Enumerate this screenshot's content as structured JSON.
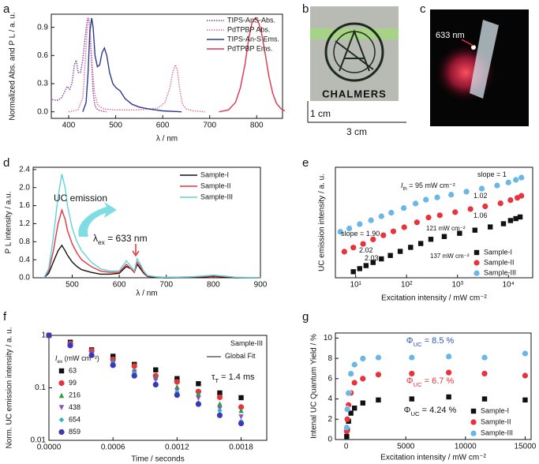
{
  "chart_data": [
    {
      "panel": "a",
      "type": "line",
      "xlabel": "λ / nm",
      "ylabel": "Normalized Abs. and P L / a. u.",
      "xlim": [
        363,
        855
      ],
      "ylim": [
        -0.07,
        1.04
      ],
      "xticks": [
        400,
        500,
        600,
        700,
        800
      ],
      "yticks": [
        {
          "value": 0,
          "label": "0.0"
        },
        0.3,
        0.6,
        0.9
      ],
      "legend": "upper right",
      "series": [
        {
          "name": "TIPS-AnS-Abs.",
          "color": "#7b3fa0",
          "dash": true,
          "x": [
            365,
            375,
            385,
            392,
            397,
            402,
            407,
            412,
            416,
            420,
            425,
            430,
            435,
            440,
            444,
            448,
            452,
            456,
            462,
            470,
            480
          ],
          "values": [
            0.13,
            0.12,
            0.15,
            0.22,
            0.27,
            0.24,
            0.3,
            0.5,
            0.55,
            0.42,
            0.42,
            0.55,
            0.8,
            1.0,
            0.95,
            0.6,
            0.2,
            0.06,
            0.02,
            0.01,
            0
          ]
        },
        {
          "name": "PdTPBP Abs.",
          "color": "#e06b9a",
          "dash": true,
          "x": [
            400,
            420,
            430,
            436,
            440,
            443,
            446,
            450,
            455,
            462,
            475,
            500,
            550,
            590,
            605,
            615,
            622,
            627,
            631,
            636,
            642,
            650,
            665,
            690
          ],
          "values": [
            0,
            0.02,
            0.15,
            0.6,
            0.95,
            1.0,
            0.85,
            0.5,
            0.2,
            0.07,
            0.03,
            0.02,
            0.02,
            0.04,
            0.1,
            0.25,
            0.43,
            0.5,
            0.45,
            0.25,
            0.08,
            0.03,
            0.01,
            0
          ]
        },
        {
          "name": "TIPS-An-S Ems.",
          "color": "#2b3a8f",
          "dash": false,
          "x": [
            430,
            437,
            441,
            445,
            449,
            452,
            456,
            461,
            466,
            471,
            476,
            481,
            487,
            494,
            500,
            510,
            520,
            535,
            550,
            570,
            600,
            640
          ],
          "values": [
            0,
            0.1,
            0.4,
            0.85,
            1.0,
            0.9,
            0.6,
            0.48,
            0.5,
            0.63,
            0.68,
            0.6,
            0.42,
            0.3,
            0.26,
            0.22,
            0.14,
            0.08,
            0.05,
            0.03,
            0.01,
            0
          ]
        },
        {
          "name": "PdTPBP Ems.",
          "color": "#e0334d",
          "dash": false,
          "x": [
            720,
            740,
            755,
            765,
            775,
            783,
            790,
            797,
            803,
            810,
            818,
            826,
            834,
            842,
            852,
            860
          ],
          "values": [
            0,
            0.02,
            0.1,
            0.25,
            0.5,
            0.78,
            0.95,
            1.0,
            0.97,
            0.85,
            0.62,
            0.38,
            0.2,
            0.09,
            0.03,
            0.01
          ]
        }
      ]
    },
    {
      "panel": "d",
      "type": "line",
      "xlabel": "λ / nm",
      "ylabel": "P L intensity / a.u.",
      "xlim": [
        417,
        900
      ],
      "ylim": [
        0,
        2.45
      ],
      "xticks": [
        500,
        600,
        700,
        800,
        900
      ],
      "yticks": [
        {
          "value": 0,
          "label": "0.0"
        },
        0.4,
        0.8,
        1.2,
        1.6,
        {
          "value": 2,
          "label": "2.0"
        },
        2.4
      ],
      "legend": "upper right",
      "x": [
        440,
        450,
        460,
        470,
        478,
        485,
        490,
        500,
        510,
        520,
        540,
        560,
        580,
        600,
        615,
        625,
        632,
        638,
        645,
        652,
        660,
        680,
        700,
        750,
        780,
        800,
        820,
        850,
        900
      ],
      "series": [
        {
          "name": "Sample-I",
          "color": "#111111",
          "dash": false,
          "values": [
            0,
            0.1,
            0.35,
            0.6,
            0.72,
            0.6,
            0.5,
            0.35,
            0.25,
            0.18,
            0.12,
            0.08,
            0.08,
            0.1,
            0.25,
            0.2,
            0.12,
            0.3,
            0.2,
            0.1,
            0.03,
            0.01,
            0,
            0.01,
            0.02,
            0.03,
            0.02,
            0,
            0
          ]
        },
        {
          "name": "Sample-II",
          "color": "#e8333c",
          "dash": false,
          "values": [
            0,
            0.15,
            0.6,
            1.2,
            1.5,
            1.3,
            1.05,
            0.75,
            0.55,
            0.4,
            0.25,
            0.15,
            0.12,
            0.12,
            0.3,
            0.2,
            0.12,
            0.35,
            0.25,
            0.12,
            0.04,
            0.02,
            0.01,
            0.02,
            0.03,
            0.04,
            0.03,
            0.01,
            0
          ]
        },
        {
          "name": "Sample-III",
          "color": "#5fd3dc",
          "dash": false,
          "values": [
            0,
            0.2,
            0.9,
            1.8,
            2.3,
            2.0,
            1.6,
            1.1,
            0.8,
            0.6,
            0.35,
            0.2,
            0.15,
            0.15,
            0.38,
            0.25,
            0.15,
            0.42,
            0.3,
            0.15,
            0.05,
            0.02,
            0.01,
            0.02,
            0.04,
            0.06,
            0.04,
            0.01,
            0
          ]
        }
      ],
      "annotations": [
        {
          "text": "UC emission"
        },
        {
          "text": "λ",
          "sub": "ex",
          "after": " = 633 nm"
        }
      ]
    },
    {
      "panel": "e",
      "type": "scatter",
      "xlabel": "Excitation intensity / mW cm⁻²",
      "ylabel": "UC emission intensity / a. u.",
      "xscale": "log",
      "yscale": "log",
      "xlim": [
        4,
        30000
      ],
      "ylim": [
        1,
        100000000000
      ],
      "xticks": [
        {
          "value": 10,
          "label": "10¹"
        },
        {
          "value": 100,
          "label": "10²"
        },
        {
          "value": 1000,
          "label": "10³"
        },
        {
          "value": 10000,
          "label": "10⁴"
        }
      ],
      "legend": "lower right",
      "series": [
        {
          "name": "Sample-I",
          "color": "#111111",
          "marker": "square",
          "x": [
            9,
            12,
            16,
            22,
            32,
            48,
            75,
            120,
            190,
            300,
            550,
            1100,
            2200,
            4400,
            8000,
            11000,
            14000,
            17000
          ],
          "values": [
            4,
            8.1,
            16.3,
            33.5,
            76,
            166,
            427,
            1070,
            2570,
            6800,
            12800,
            26800,
            55000,
            115000,
            240000,
            500000,
            775000,
            1130000
          ]
        },
        {
          "name": "Sample-II",
          "color": "#e8333c",
          "marker": "circle",
          "x": [
            6,
            9,
            14,
            22,
            35,
            55,
            90,
            160,
            270,
            450,
            900,
            1800,
            3500,
            7000,
            11000,
            15000,
            18000
          ],
          "values": [
            398,
            1020,
            2350,
            6600,
            17000,
            41700,
            107000,
            331000,
            1000000,
            1660000,
            3390000,
            6900000,
            12900000,
            26300000,
            54000000,
            91000000,
            145000000
          ]
        },
        {
          "name": "Sample-III",
          "color": "#6ab7e6",
          "marker": "half-circle",
          "x": [
            5,
            7.5,
            12,
            20,
            32,
            50,
            88,
            150,
            240,
            400,
            750,
            1500,
            3000,
            6000,
            10000,
            14000,
            18000
          ],
          "values": [
            39800,
            85000,
            229000,
            550000,
            1380000,
            3160000,
            9100000,
            25700000,
            62000000,
            105000000,
            195000000,
            390000000,
            780000000,
            1620000000,
            3200000000,
            5900000000,
            9800000000
          ]
        }
      ],
      "annotations": [
        {
          "text": "slope = 1.90"
        },
        {
          "text": "slope = 1"
        },
        {
          "text": "I",
          "sub": "th",
          "after": " = 95 mW cm⁻²"
        },
        {
          "text": "1.02"
        },
        {
          "text": "2.02"
        },
        {
          "text": "121 mW cm⁻²"
        },
        {
          "text": "1.06"
        },
        {
          "text": "2.03"
        },
        {
          "text": "137 mW cm⁻²"
        }
      ]
    },
    {
      "panel": "f",
      "type": "scatter",
      "xlabel": "Time / seconds",
      "ylabel": "Norm. UC emission intensity / a. u.",
      "yscale": "log",
      "xlim": [
        0,
        0.00204
      ],
      "ylim": [
        0.01,
        1
      ],
      "xticks": [
        {
          "value": 0,
          "label": "0.0000"
        },
        0.0006,
        0.0012,
        0.0018
      ],
      "yticks": [
        0.01,
        0.1,
        1
      ],
      "legend": "center left",
      "legend_title": {
        "text": "I",
        "sub": "ex",
        "after": " (mW cm⁻²)"
      },
      "x": [
        0,
        0.0002,
        0.0004,
        0.0006,
        0.0008,
        0.001,
        0.0012,
        0.0014,
        0.0016,
        0.0018
      ],
      "series": [
        {
          "name": "63",
          "color": "#111111",
          "marker": "square",
          "values": [
            1,
            0.74,
            0.53,
            0.4,
            0.28,
            0.22,
            0.15,
            0.12,
            0.08,
            0.065
          ]
        },
        {
          "name": "99",
          "color": "#e8333c",
          "marker": "circle",
          "values": [
            1,
            0.7,
            0.51,
            0.35,
            0.26,
            0.17,
            0.13,
            0.085,
            0.066,
            0.043
          ]
        },
        {
          "name": "216",
          "color": "#2e9c3a",
          "marker": "triangle",
          "values": [
            1,
            0.69,
            0.47,
            0.34,
            0.22,
            0.16,
            0.105,
            0.078,
            0.05,
            0.037
          ]
        },
        {
          "name": "438",
          "color": "#8a4fc0",
          "marker": "triangle-down",
          "values": [
            1,
            0.66,
            0.45,
            0.3,
            0.2,
            0.14,
            0.088,
            0.063,
            0.04,
            0.028
          ]
        },
        {
          "name": "654",
          "color": "#27b6c2",
          "marker": "diamond",
          "values": [
            1,
            0.66,
            0.43,
            0.29,
            0.19,
            0.12,
            0.083,
            0.052,
            0.037,
            0.023
          ]
        },
        {
          "name": "859",
          "color": "#3a3ab8",
          "marker": "circle",
          "values": [
            1,
            0.64,
            0.42,
            0.27,
            0.17,
            0.115,
            0.073,
            0.049,
            0.03,
            0.021
          ]
        }
      ],
      "annotations": [
        {
          "text": "Sample-III"
        },
        {
          "text": "Global Fit"
        },
        {
          "text": "τ",
          "sub": "T",
          "after": " = 1.4 ms"
        }
      ]
    },
    {
      "panel": "g",
      "type": "scatter",
      "xlabel": "Excitation intensity / mW cm⁻²",
      "ylabel": "Intenal UC Quantum Yield / %",
      "xlim": [
        -900,
        15500
      ],
      "ylim": [
        0,
        10.5
      ],
      "xticks": [
        0,
        5000,
        10000,
        15000
      ],
      "yticks": [
        0,
        2,
        4,
        6,
        8,
        10
      ],
      "legend": "lower right",
      "x": [
        50,
        100,
        200,
        400,
        700,
        1400,
        2700,
        5500,
        8600,
        11600,
        15000
      ],
      "series": [
        {
          "name": "Sample-I",
          "color": "#111111",
          "marker": "square",
          "values": [
            0.3,
            1.0,
            1.8,
            2.6,
            3.1,
            3.6,
            3.9,
            4.0,
            4.2,
            4.0,
            3.9
          ]
        },
        {
          "name": "Sample-II",
          "color": "#e8333c",
          "marker": "circle",
          "values": [
            0.8,
            2.0,
            3.4,
            4.6,
            5.6,
            6.0,
            6.4,
            6.5,
            6.6,
            6.5,
            6.3
          ]
        },
        {
          "name": "Sample-III",
          "color": "#6ab7e6",
          "marker": "half-circle",
          "values": [
            1.2,
            3.0,
            4.6,
            6.5,
            7.4,
            8.0,
            8.1,
            8.1,
            8.2,
            8.1,
            8.5
          ]
        }
      ],
      "annotations": [
        {
          "text": "Φ",
          "sub": "UC",
          "after": " = 8.5 %",
          "color": "#2d56b5"
        },
        {
          "text": "Φ",
          "sub": "UC",
          "after": " = 6.7 %",
          "color": "#e8333c"
        },
        {
          "text": "Φ",
          "sub": "UC",
          "after": " = 4.24 %",
          "color": "#111111"
        }
      ]
    }
  ],
  "photos": [
    {
      "panel": "b",
      "caption": "CHALMERS",
      "scale_bars": [
        "1 cm",
        "3 cm"
      ]
    },
    {
      "panel": "c",
      "label": "633 nm"
    }
  ]
}
